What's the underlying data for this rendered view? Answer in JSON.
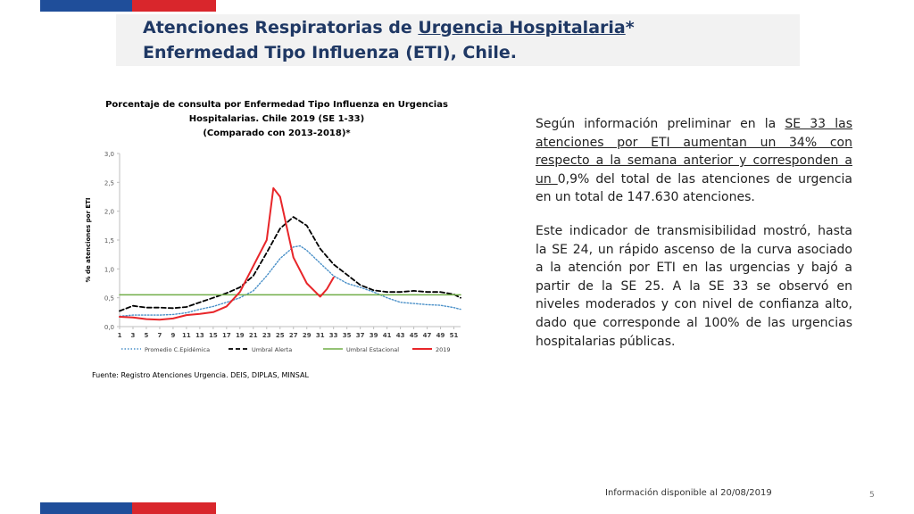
{
  "slide": {
    "title_line1_a": "Atenciones  Respiratorias de ",
    "title_line1_b": "Urgencia Hospitalaria",
    "title_line1_c": "*",
    "title_line2": "Enfermedad Tipo Influenza (ETI),  Chile.",
    "source": "Fuente: Registro Atenciones Urgencia. DEIS, DIPLAS, MINSAL",
    "footer": "Información disponible al 20/08/2019",
    "page_number": "5",
    "paragraph1": {
      "t1": "Según información preliminar en la ",
      "u1": "SE 33 las atenciones por ETI aumentan un 34% con respecto a la semana anterior y corresponden a un ",
      "t2": "0,9% del total de las atenciones de urgencia en un total de 147.630 atenciones."
    },
    "paragraph2": "Este indicador de transmisibilidad mostró, hasta la SE 24, un rápido ascenso de la curva asociado a la atención por ETI en las urgencias y bajó a partir de la SE 25. A la SE 33 se observó en niveles moderados y con nivel de confianza alto, dado que corresponde al 100% de las urgencias hospitalarias públicas.",
    "colors": {
      "brand_blue": "#1f4e9a",
      "brand_red": "#d9262c",
      "title_text": "#1f3864"
    }
  },
  "chart_data": {
    "type": "line",
    "title_lines": [
      "Porcentaje de consulta por  Enfermedad Tipo Influenza en Urgencias",
      "Hospitalarias.   Chile  2019 (SE 1-33)",
      "(Comparado con 2013-2018)*"
    ],
    "xlabel": "",
    "ylabel": "% de atenciones por  ETI",
    "x_ticks": [
      "1",
      "3",
      "5",
      "7",
      "9",
      "11",
      "13",
      "15",
      "17",
      "19",
      "21",
      "23",
      "25",
      "27",
      "29",
      "31",
      "33",
      "35",
      "37",
      "39",
      "41",
      "43",
      "45",
      "47",
      "49",
      "51"
    ],
    "x_range": [
      1,
      52
    ],
    "y_ticks": [
      "0,0",
      "0,5",
      "1,0",
      "1,5",
      "2,0",
      "2,5",
      "3,0"
    ],
    "ylim": [
      0,
      3.0
    ],
    "grid": false,
    "legend_position": "bottom",
    "series": [
      {
        "name": "Promedio  C.Epidémica",
        "style": "dotted",
        "color": "#4a90c8",
        "x": [
          1,
          3,
          5,
          7,
          9,
          11,
          13,
          15,
          17,
          19,
          21,
          23,
          25,
          27,
          28,
          29,
          31,
          33,
          35,
          37,
          39,
          41,
          43,
          45,
          47,
          49,
          51,
          52
        ],
        "y": [
          0.18,
          0.2,
          0.2,
          0.2,
          0.21,
          0.24,
          0.3,
          0.35,
          0.42,
          0.5,
          0.62,
          0.88,
          1.18,
          1.38,
          1.4,
          1.32,
          1.1,
          0.88,
          0.75,
          0.68,
          0.6,
          0.5,
          0.42,
          0.4,
          0.38,
          0.37,
          0.33,
          0.3
        ]
      },
      {
        "name": "Umbral Alerta",
        "style": "dashed",
        "color": "#000000",
        "x": [
          1,
          3,
          5,
          7,
          9,
          11,
          13,
          15,
          17,
          19,
          21,
          23,
          25,
          27,
          29,
          31,
          33,
          35,
          37,
          39,
          41,
          43,
          45,
          47,
          49,
          51,
          52
        ],
        "y": [
          0.27,
          0.36,
          0.33,
          0.33,
          0.32,
          0.34,
          0.42,
          0.5,
          0.58,
          0.68,
          0.88,
          1.28,
          1.7,
          1.9,
          1.75,
          1.35,
          1.08,
          0.9,
          0.72,
          0.63,
          0.6,
          0.6,
          0.62,
          0.6,
          0.6,
          0.56,
          0.5
        ]
      },
      {
        "name": "Umbral Estacional",
        "style": "solid",
        "color": "#70ad47",
        "x": [
          1,
          52
        ],
        "y": [
          0.55,
          0.55
        ]
      },
      {
        "name": "2019",
        "style": "solid",
        "color": "#e8262a",
        "x": [
          1,
          3,
          5,
          7,
          9,
          11,
          13,
          15,
          17,
          19,
          21,
          23,
          24,
          25,
          27,
          29,
          31,
          32,
          33
        ],
        "y": [
          0.17,
          0.16,
          0.13,
          0.12,
          0.14,
          0.2,
          0.22,
          0.25,
          0.35,
          0.6,
          1.05,
          1.5,
          2.4,
          2.25,
          1.2,
          0.75,
          0.52,
          0.65,
          0.85
        ]
      }
    ]
  }
}
